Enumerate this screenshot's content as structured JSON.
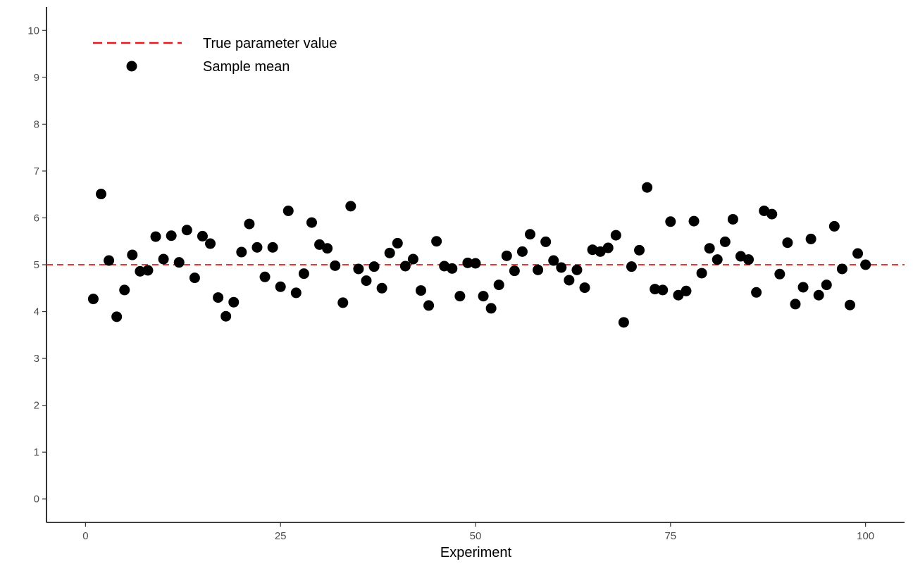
{
  "chart_data": {
    "type": "scatter",
    "title": "",
    "xlabel": "Experiment",
    "ylabel": "",
    "xlim": [
      -5,
      105
    ],
    "ylim": [
      -0.5,
      10.5
    ],
    "x_ticks": [
      0,
      25,
      50,
      75,
      100
    ],
    "x_tick_labels": [
      "0",
      "25",
      "50",
      "75",
      "100"
    ],
    "y_ticks": [
      0,
      1,
      2,
      3,
      4,
      5,
      6,
      7,
      8,
      9,
      10
    ],
    "y_tick_labels": [
      "0",
      "1",
      "2",
      "3",
      "4",
      "5",
      "6",
      "7",
      "8",
      "9",
      "10"
    ],
    "grid": false,
    "legend_position": "top-left",
    "reference_line": {
      "name": "True parameter value",
      "y": 5,
      "color": "#e41a1c",
      "style": "dashed"
    },
    "series": [
      {
        "name": "Sample mean",
        "color": "#000000",
        "marker": "circle",
        "x": [
          1,
          2,
          3,
          4,
          5,
          6,
          7,
          8,
          9,
          10,
          11,
          12,
          13,
          14,
          15,
          16,
          17,
          18,
          19,
          20,
          21,
          22,
          23,
          24,
          25,
          26,
          27,
          28,
          29,
          30,
          31,
          32,
          33,
          34,
          35,
          36,
          37,
          38,
          39,
          40,
          41,
          42,
          43,
          44,
          45,
          46,
          47,
          48,
          49,
          50,
          51,
          52,
          53,
          54,
          55,
          56,
          57,
          58,
          59,
          60,
          61,
          62,
          63,
          64,
          65,
          66,
          67,
          68,
          69,
          70,
          71,
          72,
          73,
          74,
          75,
          76,
          77,
          78,
          79,
          80,
          81,
          82,
          83,
          84,
          85,
          86,
          87,
          88,
          89,
          90,
          91,
          92,
          93,
          94,
          95,
          96,
          97,
          98,
          99,
          100
        ],
        "y": [
          4.27,
          6.51,
          5.09,
          3.89,
          4.46,
          5.21,
          4.86,
          4.88,
          5.6,
          5.12,
          5.62,
          5.05,
          5.74,
          4.72,
          5.61,
          5.45,
          4.3,
          3.9,
          4.2,
          5.27,
          5.87,
          5.37,
          4.74,
          5.37,
          4.53,
          6.15,
          4.4,
          4.81,
          5.9,
          5.43,
          5.35,
          4.98,
          4.19,
          6.25,
          4.91,
          4.66,
          4.96,
          4.5,
          5.25,
          5.46,
          4.97,
          5.12,
          4.45,
          4.13,
          5.5,
          4.97,
          4.92,
          4.33,
          5.04,
          5.03,
          4.33,
          4.07,
          4.57,
          5.19,
          4.87,
          5.28,
          5.65,
          4.89,
          5.49,
          5.09,
          4.94,
          4.67,
          4.89,
          4.51,
          5.32,
          5.28,
          5.36,
          5.63,
          3.77,
          4.96,
          5.31,
          6.65,
          4.48,
          4.46,
          5.92,
          4.35,
          4.44,
          5.93,
          4.82,
          5.35,
          5.11,
          5.49,
          5.97,
          5.18,
          5.11,
          4.41,
          6.15,
          6.08,
          4.8,
          5.47,
          4.16,
          4.52,
          5.55,
          4.35,
          4.57,
          5.82,
          4.91,
          4.14,
          5.24,
          5.0
        ]
      }
    ]
  }
}
